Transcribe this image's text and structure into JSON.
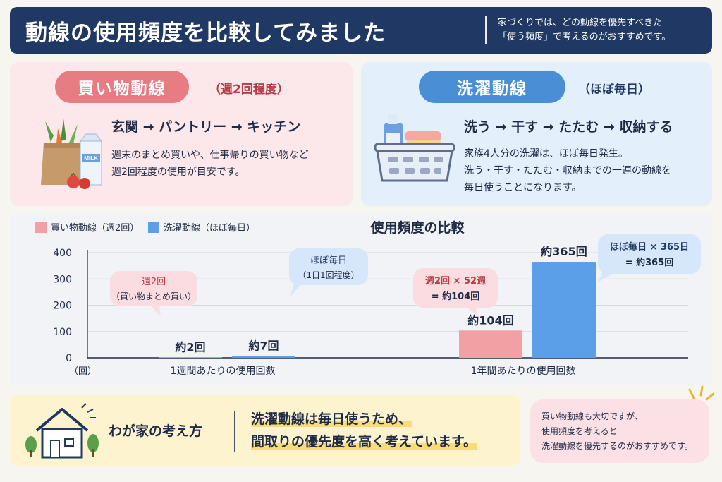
{
  "header": {
    "title": "動線の使用頻度を比較してみました",
    "desc_line1": "家づくりでは、どの動線を優先すべきた",
    "desc_line2": "「使う頻度」で考えるのがおすすめです。"
  },
  "shopping": {
    "label": "買い物動線",
    "frequency": "（週2回程度）",
    "route": "玄関 → パントリー → キッチン",
    "desc_line1": "週末のまとめ買いや、仕事帰りの買い物など",
    "desc_line2": "週2回程度の使用が目安です。",
    "illus_text": "MILK",
    "color": "#e87c83"
  },
  "laundry": {
    "label": "洗濯動線",
    "frequency": "（ほぼ毎日）",
    "route": "洗う → 干す → たたむ → 収納する",
    "desc_line1": "家族4人分の洗濯は、ほぼ毎日発生。",
    "desc_line2": "洗う・干す・たたむ・収納までの一連の動線を",
    "desc_line3": "毎日使うことになります。",
    "color": "#4a8fd6"
  },
  "chart_data": {
    "type": "bar",
    "title": "使用頻度の比較",
    "categories": [
      "1週間あたりの使用回数",
      "1年間あたりの使用回数"
    ],
    "series": [
      {
        "name": "買い物動線（週2回）",
        "values": [
          2,
          104
        ],
        "labels": [
          "約2回",
          "約104回"
        ],
        "color": "#f2a0a4"
      },
      {
        "name": "洗濯動線（ほぼ毎日）",
        "values": [
          7,
          365
        ],
        "labels": [
          "約7回",
          "約365回"
        ],
        "color": "#5b9fe8"
      }
    ],
    "ylim": [
      0,
      400
    ],
    "yticks": [
      0,
      100,
      200,
      300,
      400
    ],
    "unit": "（回）",
    "legend": "top-left",
    "grid": true,
    "annotations": {
      "week_shop_line1": "週2回",
      "week_shop_line2": "（買い物まとめ買い）",
      "week_wash_line1": "ほぼ毎日",
      "week_wash_line2": "（1日1回程度）",
      "year_shop_line1": "週2回 × 52週",
      "year_shop_line2": "= 約104回",
      "year_wash_line1": "ほぼ毎日 × 365日",
      "year_wash_line2": "= 約365回"
    }
  },
  "bottom": {
    "title": "わが家の考え方",
    "msg_line1": "洗濯動線は毎日使うため、",
    "msg_line2": "間取りの優先度を高く考えています。"
  },
  "note": {
    "line1": "買い物動線も大切ですが、",
    "line2": "使用頻度を考えると",
    "line3": "洗濯動線を優先するのがおすすめです。"
  }
}
